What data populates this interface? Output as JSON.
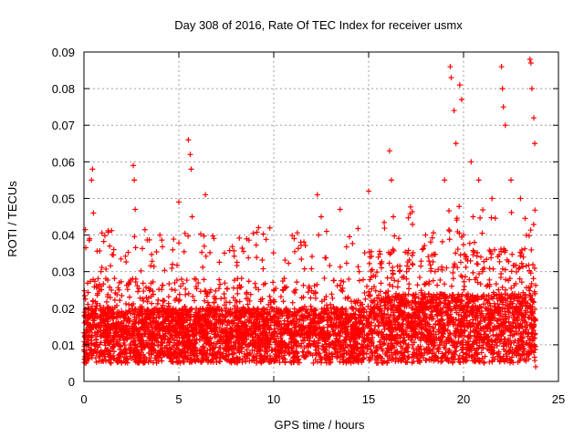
{
  "chart_data": {
    "type": "scatter",
    "title": "Day 308 of 2016, Rate Of TEC Index for receiver usmx",
    "xlabel": "GPS time / hours",
    "ylabel": "ROTI / TECUs",
    "xlim": [
      0,
      25
    ],
    "ylim": [
      0,
      0.09
    ],
    "xticks": [
      "0",
      "5",
      "10",
      "15",
      "20",
      "25"
    ],
    "yticks": [
      "0",
      "0.01",
      "0.02",
      "0.03",
      "0.04",
      "0.05",
      "0.06",
      "0.07",
      "0.08",
      "0.09"
    ],
    "grid": true,
    "marker": "+",
    "color": "#ff0000",
    "series": [
      {
        "name": "ROTI",
        "x": [
          0.1,
          0.3,
          0.4,
          0.45,
          0.5,
          0.6,
          0.9,
          1.5,
          2.0,
          2.6,
          2.65,
          2.7,
          3.2,
          3.8,
          4.0,
          4.5,
          5.0,
          5.5,
          5.6,
          5.65,
          5.7,
          6.4,
          7.0,
          8.0,
          9.2,
          9.5,
          10.0,
          10.5,
          11.0,
          11.5,
          12.3,
          12.5,
          13.0,
          13.5,
          14.0,
          14.5,
          15.0,
          15.5,
          16.1,
          16.2,
          16.3,
          16.5,
          17.0,
          17.5,
          18.0,
          18.5,
          19.0,
          19.3,
          19.35,
          19.5,
          19.6,
          19.8,
          19.9,
          20.0,
          20.4,
          20.5,
          20.8,
          21.0,
          21.5,
          22.0,
          22.05,
          22.1,
          22.2,
          22.5,
          23.0,
          23.5,
          23.55,
          23.6,
          23.7,
          23.75,
          23.8
        ],
        "y": [
          0.012,
          0.039,
          0.055,
          0.058,
          0.046,
          0.015,
          0.03,
          0.02,
          0.018,
          0.059,
          0.055,
          0.047,
          0.015,
          0.02,
          0.04,
          0.014,
          0.049,
          0.066,
          0.062,
          0.058,
          0.045,
          0.051,
          0.016,
          0.018,
          0.042,
          0.015,
          0.025,
          0.014,
          0.012,
          0.02,
          0.051,
          0.045,
          0.02,
          0.047,
          0.018,
          0.03,
          0.052,
          0.02,
          0.063,
          0.055,
          0.045,
          0.02,
          0.03,
          0.018,
          0.04,
          0.03,
          0.055,
          0.086,
          0.083,
          0.074,
          0.065,
          0.081,
          0.077,
          0.04,
          0.06,
          0.045,
          0.055,
          0.03,
          0.05,
          0.086,
          0.08,
          0.075,
          0.07,
          0.055,
          0.05,
          0.088,
          0.087,
          0.08,
          0.072,
          0.065,
          0.004
        ],
        "baseline_band": {
          "low": 0.005,
          "typical": 0.012,
          "high": 0.03
        }
      }
    ]
  }
}
